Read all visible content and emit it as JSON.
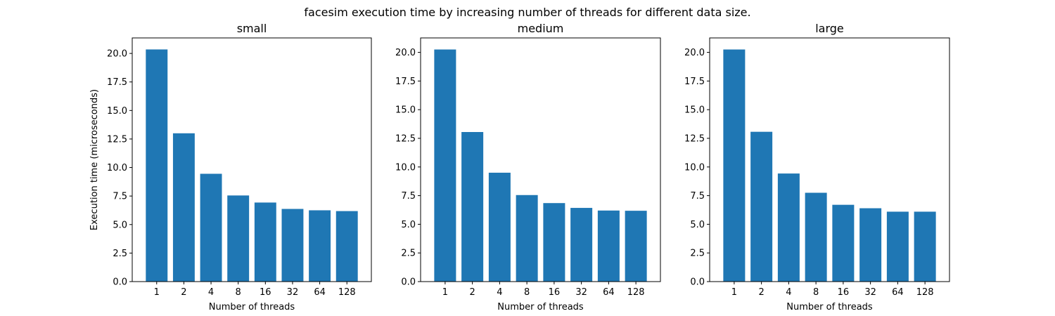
{
  "suptitle": "facesim execution time by increasing number of threads for different data size.",
  "colors": {
    "bar": "#1f77b4"
  },
  "chart_data": [
    {
      "type": "bar",
      "title": "small",
      "xlabel": "Number of threads",
      "ylabel": "Execution time (microseconds)",
      "categories": [
        "1",
        "2",
        "4",
        "8",
        "16",
        "32",
        "64",
        "128"
      ],
      "values": [
        20.35,
        13.0,
        9.45,
        7.55,
        6.93,
        6.37,
        6.25,
        6.18
      ],
      "ylim": [
        0,
        21.36
      ],
      "yticks": [
        "0.0",
        "2.5",
        "5.0",
        "7.5",
        "10.0",
        "12.5",
        "15.0",
        "17.5",
        "20.0"
      ],
      "grid": false
    },
    {
      "type": "bar",
      "title": "medium",
      "xlabel": "Number of threads",
      "ylabel": "",
      "categories": [
        "1",
        "2",
        "4",
        "8",
        "16",
        "32",
        "64",
        "128"
      ],
      "values": [
        20.25,
        13.05,
        9.5,
        7.55,
        6.85,
        6.43,
        6.2,
        6.18
      ],
      "ylim": [
        0,
        21.26
      ],
      "yticks": [
        "0.0",
        "2.5",
        "5.0",
        "7.5",
        "10.0",
        "12.5",
        "15.0",
        "17.5",
        "20.0"
      ],
      "grid": false
    },
    {
      "type": "bar",
      "title": "large",
      "xlabel": "Number of threads",
      "ylabel": "",
      "categories": [
        "1",
        "2",
        "4",
        "8",
        "16",
        "32",
        "64",
        "128"
      ],
      "values": [
        20.25,
        13.07,
        9.43,
        7.75,
        6.7,
        6.4,
        6.1,
        6.1
      ],
      "ylim": [
        0,
        21.26
      ],
      "yticks": [
        "0.0",
        "2.5",
        "5.0",
        "7.5",
        "10.0",
        "12.5",
        "15.0",
        "17.5",
        "20.0"
      ],
      "grid": false
    }
  ]
}
